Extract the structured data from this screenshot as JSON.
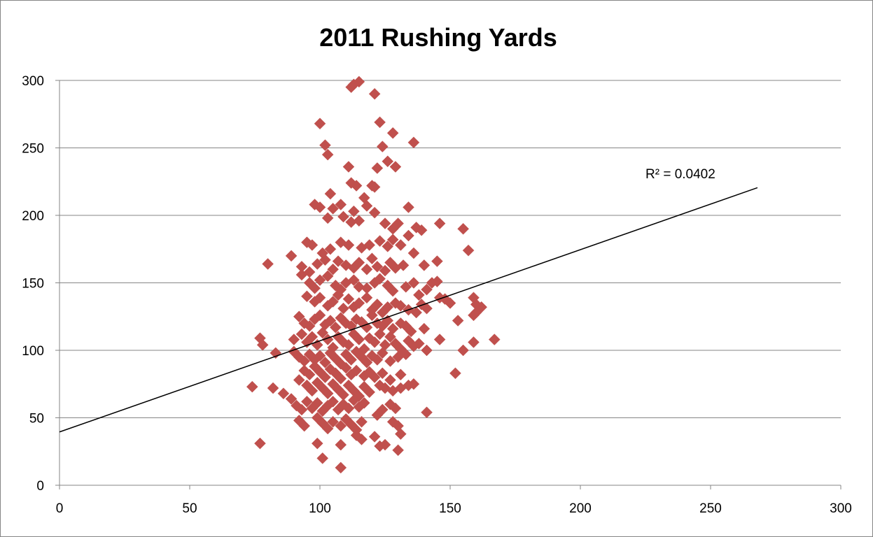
{
  "chart_data": {
    "type": "scatter",
    "title": "2011 Rushing Yards",
    "xlabel": "",
    "ylabel": "",
    "xlim": [
      0,
      300
    ],
    "ylim": [
      0,
      300
    ],
    "x_ticks": [
      "0",
      "50",
      "100",
      "150",
      "200",
      "250",
      "300"
    ],
    "y_ticks": [
      "0",
      "50",
      "100",
      "150",
      "200",
      "250",
      "300"
    ],
    "grid": {
      "horizontal": true,
      "vertical": false
    },
    "marker": {
      "shape": "diamond",
      "color": "#C0504D"
    },
    "trendline": {
      "type": "linear",
      "x": [
        0,
        268
      ],
      "y": [
        39.5,
        220.5
      ],
      "color": "#000000",
      "annotation": "R² = 0.0402"
    },
    "series": [
      {
        "values": [
          [
            115,
            299
          ],
          [
            112,
            295
          ],
          [
            113,
            297
          ],
          [
            121,
            290
          ],
          [
            100,
            268
          ],
          [
            123,
            269
          ],
          [
            128,
            261
          ],
          [
            102,
            252
          ],
          [
            136,
            254
          ],
          [
            103,
            245
          ],
          [
            124,
            251
          ],
          [
            111,
            236
          ],
          [
            129,
            236
          ],
          [
            122,
            235
          ],
          [
            126,
            240
          ],
          [
            112,
            224
          ],
          [
            114,
            222
          ],
          [
            121,
            221
          ],
          [
            120,
            222
          ],
          [
            104,
            216
          ],
          [
            117,
            213
          ],
          [
            118,
            207
          ],
          [
            98,
            208
          ],
          [
            100,
            206
          ],
          [
            105,
            205
          ],
          [
            108,
            208
          ],
          [
            113,
            203
          ],
          [
            121,
            202
          ],
          [
            134,
            206
          ],
          [
            103,
            198
          ],
          [
            109,
            199
          ],
          [
            115,
            196
          ],
          [
            112,
            195
          ],
          [
            125,
            194
          ],
          [
            128,
            190
          ],
          [
            130,
            194
          ],
          [
            137,
            191
          ],
          [
            139,
            189
          ],
          [
            146,
            194
          ],
          [
            155,
            190
          ],
          [
            157,
            174
          ],
          [
            95,
            180
          ],
          [
            97,
            178
          ],
          [
            101,
            172
          ],
          [
            104,
            175
          ],
          [
            108,
            180
          ],
          [
            111,
            178
          ],
          [
            116,
            176
          ],
          [
            119,
            178
          ],
          [
            123,
            181
          ],
          [
            126,
            177
          ],
          [
            128,
            182
          ],
          [
            131,
            178
          ],
          [
            134,
            185
          ],
          [
            136,
            172
          ],
          [
            80,
            164
          ],
          [
            89,
            170
          ],
          [
            93,
            162
          ],
          [
            96,
            158
          ],
          [
            99,
            164
          ],
          [
            102,
            167
          ],
          [
            105,
            160
          ],
          [
            107,
            166
          ],
          [
            110,
            163
          ],
          [
            113,
            161
          ],
          [
            115,
            165
          ],
          [
            118,
            160
          ],
          [
            120,
            168
          ],
          [
            122,
            162
          ],
          [
            125,
            159
          ],
          [
            127,
            165
          ],
          [
            129,
            161
          ],
          [
            132,
            163
          ],
          [
            140,
            163
          ],
          [
            145,
            166
          ],
          [
            93,
            156
          ],
          [
            96,
            150
          ],
          [
            98,
            146
          ],
          [
            100,
            152
          ],
          [
            103,
            155
          ],
          [
            106,
            148
          ],
          [
            108,
            145
          ],
          [
            110,
            150
          ],
          [
            113,
            152
          ],
          [
            115,
            147
          ],
          [
            118,
            146
          ],
          [
            121,
            150
          ],
          [
            123,
            153
          ],
          [
            126,
            148
          ],
          [
            128,
            144
          ],
          [
            133,
            147
          ],
          [
            136,
            150
          ],
          [
            138,
            141
          ],
          [
            141,
            145
          ],
          [
            143,
            150
          ],
          [
            145,
            151
          ],
          [
            148,
            138
          ],
          [
            150,
            135
          ],
          [
            95,
            140
          ],
          [
            98,
            136
          ],
          [
            100,
            139
          ],
          [
            103,
            133
          ],
          [
            105,
            136
          ],
          [
            107,
            141
          ],
          [
            109,
            131
          ],
          [
            111,
            138
          ],
          [
            113,
            132
          ],
          [
            115,
            135
          ],
          [
            118,
            139
          ],
          [
            120,
            130
          ],
          [
            122,
            134
          ],
          [
            124,
            128
          ],
          [
            126,
            132
          ],
          [
            129,
            135
          ],
          [
            131,
            133
          ],
          [
            134,
            130
          ],
          [
            137,
            128
          ],
          [
            139,
            134
          ],
          [
            141,
            131
          ],
          [
            146,
            139
          ],
          [
            159,
            139
          ],
          [
            160,
            134
          ],
          [
            162,
            132
          ],
          [
            160,
            128
          ],
          [
            92,
            125
          ],
          [
            94,
            120
          ],
          [
            96,
            118
          ],
          [
            98,
            123
          ],
          [
            100,
            126
          ],
          [
            102,
            119
          ],
          [
            104,
            122
          ],
          [
            106,
            117
          ],
          [
            108,
            124
          ],
          [
            110,
            120
          ],
          [
            112,
            118
          ],
          [
            114,
            123
          ],
          [
            116,
            121
          ],
          [
            118,
            117
          ],
          [
            120,
            126
          ],
          [
            122,
            120
          ],
          [
            124,
            118
          ],
          [
            126,
            122
          ],
          [
            128,
            116
          ],
          [
            131,
            120
          ],
          [
            133,
            118
          ],
          [
            135,
            114
          ],
          [
            140,
            116
          ],
          [
            153,
            122
          ],
          [
            159,
            126
          ],
          [
            77,
            109
          ],
          [
            78,
            104
          ],
          [
            83,
            98
          ],
          [
            90,
            108
          ],
          [
            93,
            112
          ],
          [
            95,
            106
          ],
          [
            97,
            110
          ],
          [
            99,
            104
          ],
          [
            101,
            113
          ],
          [
            103,
            108
          ],
          [
            105,
            102
          ],
          [
            107,
            110
          ],
          [
            109,
            106
          ],
          [
            111,
            104
          ],
          [
            113,
            112
          ],
          [
            115,
            108
          ],
          [
            117,
            101
          ],
          [
            119,
            109
          ],
          [
            121,
            106
          ],
          [
            123,
            112
          ],
          [
            125,
            104
          ],
          [
            127,
            110
          ],
          [
            129,
            105
          ],
          [
            131,
            101
          ],
          [
            134,
            107
          ],
          [
            136,
            103
          ],
          [
            138,
            105
          ],
          [
            141,
            100
          ],
          [
            146,
            108
          ],
          [
            155,
            100
          ],
          [
            159,
            106
          ],
          [
            167,
            108
          ],
          [
            90,
            99
          ],
          [
            92,
            95
          ],
          [
            94,
            92
          ],
          [
            96,
            97
          ],
          [
            98,
            93
          ],
          [
            100,
            96
          ],
          [
            102,
            91
          ],
          [
            104,
            98
          ],
          [
            106,
            94
          ],
          [
            108,
            90
          ],
          [
            110,
            97
          ],
          [
            112,
            93
          ],
          [
            114,
            99
          ],
          [
            116,
            95
          ],
          [
            118,
            91
          ],
          [
            120,
            96
          ],
          [
            122,
            93
          ],
          [
            124,
            98
          ],
          [
            127,
            92
          ],
          [
            130,
            95
          ],
          [
            133,
            97
          ],
          [
            94,
            85
          ],
          [
            96,
            82
          ],
          [
            98,
            88
          ],
          [
            100,
            84
          ],
          [
            102,
            80
          ],
          [
            104,
            86
          ],
          [
            106,
            83
          ],
          [
            108,
            79
          ],
          [
            110,
            87
          ],
          [
            112,
            82
          ],
          [
            114,
            85
          ],
          [
            117,
            81
          ],
          [
            119,
            84
          ],
          [
            121,
            80
          ],
          [
            124,
            83
          ],
          [
            127,
            78
          ],
          [
            131,
            82
          ],
          [
            152,
            83
          ],
          [
            74,
            73
          ],
          [
            82,
            72
          ],
          [
            86,
            68
          ],
          [
            89,
            64
          ],
          [
            92,
            78
          ],
          [
            95,
            74
          ],
          [
            97,
            70
          ],
          [
            99,
            76
          ],
          [
            101,
            72
          ],
          [
            103,
            68
          ],
          [
            105,
            75
          ],
          [
            107,
            71
          ],
          [
            109,
            67
          ],
          [
            111,
            74
          ],
          [
            113,
            70
          ],
          [
            115,
            66
          ],
          [
            117,
            73
          ],
          [
            119,
            69
          ],
          [
            123,
            74
          ],
          [
            125,
            72
          ],
          [
            128,
            70
          ],
          [
            131,
            72
          ],
          [
            134,
            74
          ],
          [
            136,
            75
          ],
          [
            91,
            59
          ],
          [
            93,
            56
          ],
          [
            95,
            62
          ],
          [
            97,
            57
          ],
          [
            99,
            61
          ],
          [
            101,
            55
          ],
          [
            103,
            59
          ],
          [
            105,
            62
          ],
          [
            107,
            56
          ],
          [
            109,
            60
          ],
          [
            111,
            57
          ],
          [
            113,
            63
          ],
          [
            115,
            58
          ],
          [
            117,
            61
          ],
          [
            124,
            56
          ],
          [
            127,
            60
          ],
          [
            129,
            57
          ],
          [
            92,
            48
          ],
          [
            94,
            44
          ],
          [
            99,
            50
          ],
          [
            101,
            46
          ],
          [
            103,
            42
          ],
          [
            105,
            47
          ],
          [
            108,
            44
          ],
          [
            110,
            49
          ],
          [
            112,
            45
          ],
          [
            114,
            41
          ],
          [
            116,
            47
          ],
          [
            122,
            52
          ],
          [
            128,
            47
          ],
          [
            130,
            44
          ],
          [
            141,
            54
          ],
          [
            77,
            31
          ],
          [
            99,
            31
          ],
          [
            108,
            30
          ],
          [
            114,
            37
          ],
          [
            116,
            34
          ],
          [
            121,
            36
          ],
          [
            123,
            29
          ],
          [
            125,
            30
          ],
          [
            131,
            38
          ],
          [
            130,
            26
          ],
          [
            101,
            20
          ],
          [
            108,
            13
          ]
        ]
      }
    ]
  }
}
